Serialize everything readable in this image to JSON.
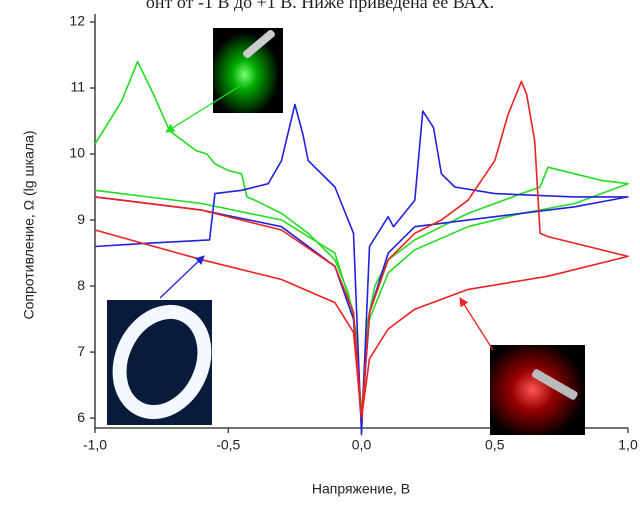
{
  "header_text": "онт от -1 В до +1 В. Ниже приведена ее ВАХ.",
  "chart_data": {
    "type": "line",
    "xlabel": "Напряжение, В",
    "ylabel": "Сопротивление, Ω (lg шкала)",
    "xlim": [
      -1,
      1
    ],
    "ylim": [
      5.85,
      12
    ],
    "xticks": [
      {
        "value": -1,
        "label": "-1,0"
      },
      {
        "value": -0.5,
        "label": "-0,5"
      },
      {
        "value": 0,
        "label": "0,0"
      },
      {
        "value": 0.5,
        "label": "0,5"
      },
      {
        "value": 1,
        "label": "1,0"
      }
    ],
    "yticks": [
      6,
      7,
      8,
      9,
      10,
      11,
      12
    ],
    "series": [
      {
        "color": "#22dd22",
        "x": [
          -1,
          -0.9,
          -0.84,
          -0.78,
          -0.72,
          -0.62,
          -0.58,
          -0.55,
          -0.5,
          -0.45,
          -0.43,
          -0.4,
          -0.3,
          -0.2,
          -0.1,
          -0.05,
          -0.02,
          0,
          0.02,
          0.05,
          0.1,
          0.2,
          0.3,
          0.4,
          0.5,
          0.6,
          0.67,
          0.7,
          0.8,
          0.9,
          1.0,
          0.8,
          0.6,
          0.4,
          0.2,
          0.1,
          0.03,
          0,
          -0.03,
          -0.1,
          -0.3,
          -0.6,
          -1
        ],
        "values": [
          10.15,
          10.8,
          11.4,
          10.9,
          10.35,
          10.05,
          10.0,
          9.85,
          9.75,
          9.7,
          9.35,
          9.3,
          9.1,
          8.8,
          8.4,
          7.9,
          7.3,
          6.0,
          7.4,
          8.0,
          8.4,
          8.7,
          8.9,
          9.1,
          9.25,
          9.4,
          9.5,
          9.8,
          9.7,
          9.6,
          9.55,
          9.25,
          9.1,
          8.9,
          8.55,
          8.2,
          7.5,
          6.1,
          7.6,
          8.5,
          9.0,
          9.25,
          9.45
        ]
      },
      {
        "color": "#2222dd",
        "x": [
          -1,
          -0.8,
          -0.57,
          -0.55,
          -0.45,
          -0.35,
          -0.3,
          -0.25,
          -0.22,
          -0.2,
          -0.1,
          -0.03,
          0,
          0.03,
          0.1,
          0.12,
          0.2,
          0.23,
          0.27,
          0.3,
          0.35,
          0.5,
          0.8,
          1.0,
          0.8,
          0.5,
          0.2,
          0.1,
          0.03,
          0,
          -0.03,
          -0.1,
          -0.3,
          -0.6,
          -1
        ],
        "values": [
          8.6,
          8.65,
          8.7,
          9.4,
          9.45,
          9.55,
          9.9,
          10.75,
          10.3,
          9.9,
          9.5,
          8.8,
          5.75,
          8.6,
          9.05,
          8.9,
          9.3,
          10.65,
          10.4,
          9.7,
          9.5,
          9.4,
          9.35,
          9.35,
          9.2,
          9.05,
          8.9,
          8.5,
          7.6,
          5.9,
          7.5,
          8.3,
          8.9,
          9.15,
          9.35
        ]
      },
      {
        "color": "#ee2222",
        "x": [
          -1,
          -0.6,
          -0.3,
          -0.1,
          -0.03,
          0,
          0.03,
          0.1,
          0.2,
          0.3,
          0.4,
          0.5,
          0.55,
          0.6,
          0.62,
          0.65,
          0.67,
          0.7,
          0.85,
          1.0,
          0.7,
          0.4,
          0.2,
          0.1,
          0.03,
          0,
          -0.03,
          -0.1,
          -0.3,
          -0.6,
          -1
        ],
        "values": [
          9.35,
          9.15,
          8.85,
          8.3,
          7.6,
          6.0,
          7.6,
          8.4,
          8.8,
          9.0,
          9.3,
          9.9,
          10.6,
          11.1,
          10.9,
          10.2,
          8.8,
          8.75,
          8.6,
          8.45,
          8.15,
          7.95,
          7.65,
          7.35,
          6.9,
          6.0,
          7.3,
          7.75,
          8.1,
          8.4,
          8.85
        ]
      }
    ]
  }
}
